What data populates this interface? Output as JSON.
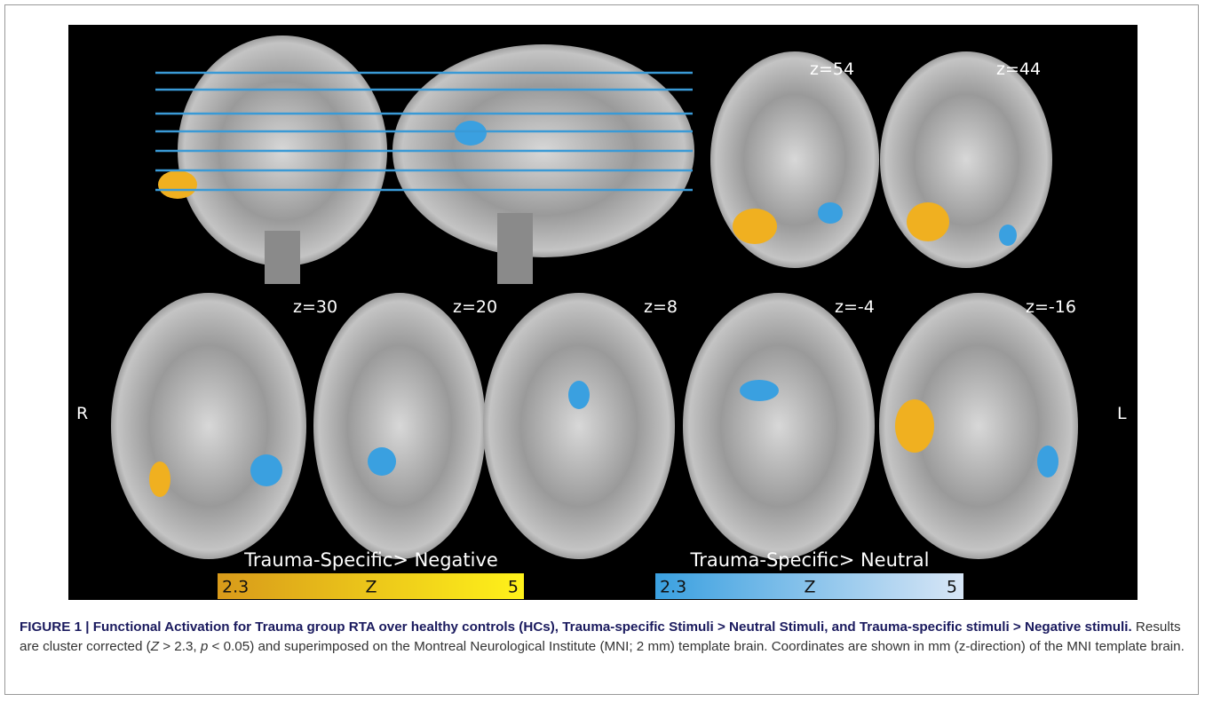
{
  "figure": {
    "slice_labels": [
      "z=54",
      "z=44",
      "z=30",
      "z=20",
      "z=8",
      "z=-4",
      "z=-16"
    ],
    "side_left": "R",
    "side_right": "L",
    "colorbars": [
      {
        "title": "Trauma-Specific> Negative",
        "min": 2.3,
        "axis": "Z",
        "max": 5
      },
      {
        "title": "Trauma-Specific> Neutral",
        "min": 2.3,
        "axis": "Z",
        "max": 5
      }
    ]
  },
  "caption": {
    "bold": "FIGURE 1 | Functional Activation for Trauma group RTA over healthy controls (HCs), Trauma-specific Stimuli > Neutral Stimuli, and Trauma-specific stimuli > Negative stimuli.",
    "segments": [
      " Results are cluster corrected (",
      "Z",
      " > 2.3, ",
      "p",
      " < 0.05) and superimposed on the Montreal Neurological Institute (MNI; 2 mm) template brain. Coordinates are shown in mm (z-direction) of the MNI template brain."
    ]
  }
}
